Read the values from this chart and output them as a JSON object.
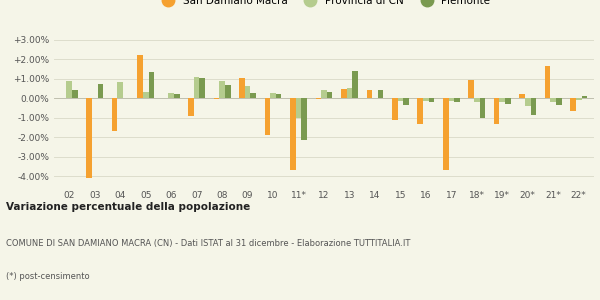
{
  "categories": [
    "02",
    "03",
    "04",
    "05",
    "06",
    "07",
    "08",
    "09",
    "10",
    "11*",
    "12",
    "13",
    "14",
    "15",
    "16",
    "17",
    "18*",
    "19*",
    "20*",
    "21*",
    "22*"
  ],
  "san_damiano": [
    0.0,
    -4.1,
    -1.7,
    2.2,
    0.0,
    -0.9,
    -0.05,
    1.05,
    -1.9,
    -3.7,
    -0.05,
    0.5,
    0.4,
    -1.1,
    -1.3,
    -3.7,
    0.95,
    -1.3,
    0.2,
    1.65,
    -0.65
  ],
  "provincia_cn": [
    0.9,
    0.0,
    0.85,
    0.3,
    0.25,
    1.1,
    0.9,
    0.65,
    0.25,
    -1.0,
    0.4,
    0.55,
    0.0,
    -0.15,
    -0.15,
    -0.15,
    -0.2,
    -0.2,
    -0.4,
    -0.2,
    -0.1
  ],
  "piemonte": [
    0.4,
    0.75,
    0.0,
    1.35,
    0.2,
    1.05,
    0.7,
    0.25,
    0.2,
    -2.15,
    0.3,
    1.4,
    0.4,
    -0.35,
    -0.2,
    -0.2,
    -1.0,
    -0.3,
    -0.85,
    -0.35,
    0.1
  ],
  "color_san_damiano": "#f5a130",
  "color_provincia": "#b5cc8e",
  "color_piemonte": "#7a9a50",
  "title": "Variazione percentuale della popolazione",
  "subtitle": "COMUNE DI SAN DAMIANO MACRA (CN) - Dati ISTAT al 31 dicembre - Elaborazione TUTTITALIA.IT",
  "footnote": "(*) post-censimento",
  "legend_labels": [
    "San Damiano Macra",
    "Provincia di CN",
    "Piemonte"
  ],
  "ylim": [
    -4.5,
    3.5
  ],
  "yticks": [
    -4.0,
    -3.0,
    -2.0,
    -1.0,
    0.0,
    1.0,
    2.0,
    3.0
  ],
  "background_color": "#f5f5e8",
  "grid_color": "#ddddcc"
}
